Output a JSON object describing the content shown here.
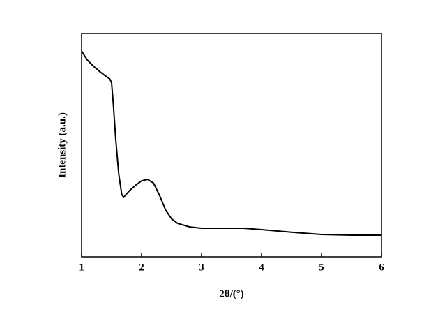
{
  "chart_data": {
    "type": "line",
    "x_label": "2θ/(°)",
    "y_label": "Intensity (a.u.)",
    "x": [
      1.0,
      1.05,
      1.1,
      1.2,
      1.3,
      1.4,
      1.47,
      1.5,
      1.53,
      1.57,
      1.62,
      1.67,
      1.7,
      1.8,
      1.9,
      2.0,
      2.1,
      2.2,
      2.3,
      2.4,
      2.5,
      2.6,
      2.8,
      3.0,
      3.5,
      3.7,
      4.0,
      4.5,
      5.0,
      5.5,
      6.0
    ],
    "values": [
      92.2,
      90,
      88,
      85.3,
      83,
      81,
      79.7,
      78,
      68,
      52.5,
      37,
      28,
      26.6,
      29.7,
      32,
      34,
      34.7,
      33,
      27.5,
      21,
      17,
      15,
      13.4,
      12.8,
      12.8,
      12.8,
      12.2,
      11,
      10,
      9.7,
      9.7
    ],
    "color": "#000000",
    "xlim": [
      1,
      6
    ],
    "xticks": [
      1,
      2,
      3,
      4,
      5,
      6
    ],
    "ylim": [
      0,
      100
    ]
  }
}
